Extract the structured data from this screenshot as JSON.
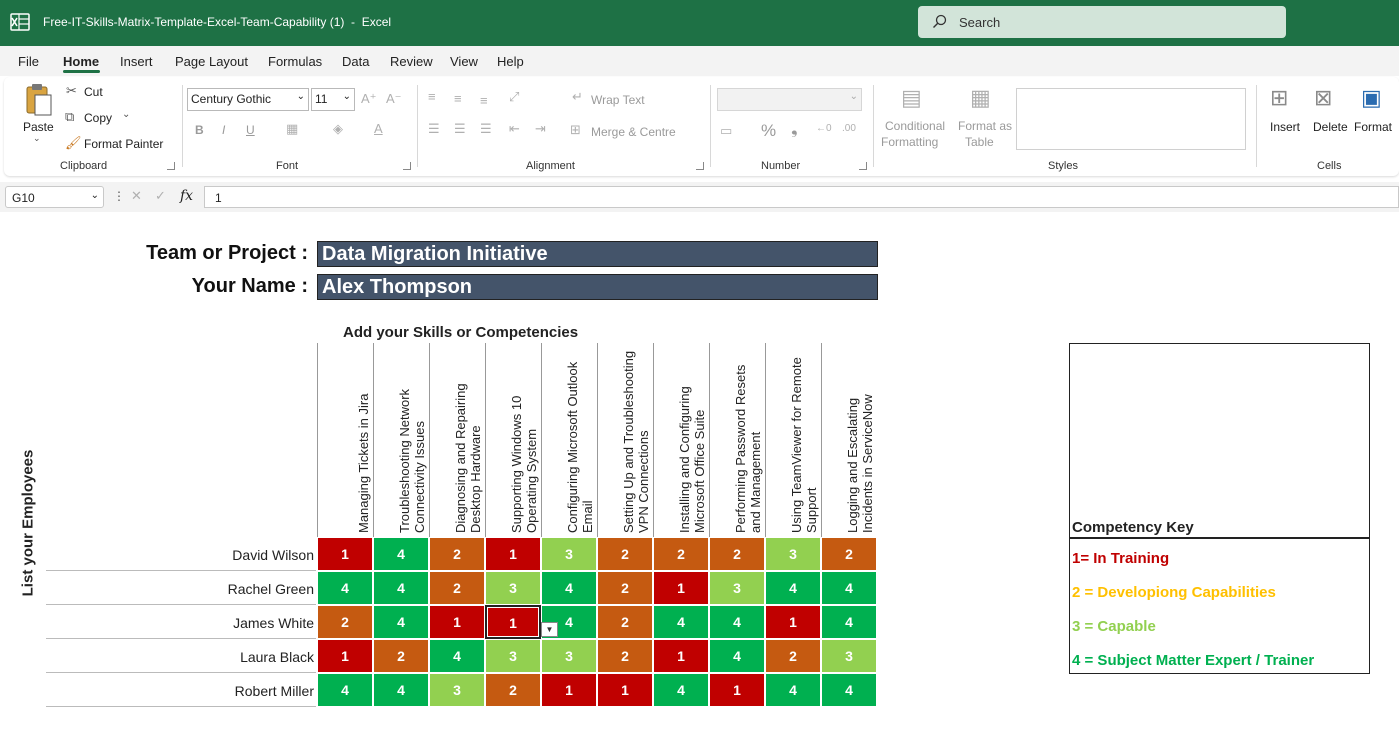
{
  "window": {
    "title": "Free-IT-Skills-Matrix-Template-Excel-Team-Capability (1)  -  Excel",
    "search_placeholder": "Search"
  },
  "menu": [
    "File",
    "Home",
    "Insert",
    "Page Layout",
    "Formulas",
    "Data",
    "Review",
    "View",
    "Help"
  ],
  "ribbon": {
    "clipboard": {
      "paste": "Paste",
      "cut": "Cut",
      "copy": "Copy",
      "format_painter": "Format Painter",
      "group": "Clipboard"
    },
    "font": {
      "name": "Century Gothic",
      "size": "11",
      "group": "Font",
      "bold": "B",
      "italic": "I",
      "underline": "U"
    },
    "alignment": {
      "wrap": "Wrap Text",
      "merge": "Merge & Centre",
      "group": "Alignment"
    },
    "number": {
      "group": "Number",
      "percent": "%",
      "comma": "❟"
    },
    "styles": {
      "conditional": "Conditional",
      "formatting": "Formatting",
      "format_as": "Format as",
      "table": "Table",
      "group": "Styles"
    },
    "cells": {
      "insert": "Insert",
      "delete": "Delete",
      "format": "Format",
      "group": "Cells"
    }
  },
  "formula_bar": {
    "cell_ref": "G10",
    "value": "1",
    "fx": "fx"
  },
  "sheet": {
    "team_label": "Team or Project :",
    "team_value": "Data Migration Initiative",
    "name_label": "Your Name :",
    "name_value": "Alex Thompson",
    "skills_title": "Add your Skills or Competencies",
    "employees_title": "List your Employees",
    "skills": [
      "Managing Tickets in Jira",
      "Troubleshooting Network Connectivity Issues",
      "Diagnosing and Repairing Desktop Hardware",
      "Supporting Windows 10 Operating System",
      "Configuring Microsoft Outlook Email",
      "Setting Up and Troubleshooting VPN Connections",
      "Installing and Configuring Microsoft Office Suite",
      "Performing Password Resets and Management",
      "Using TeamViewer for Remote Support",
      "Logging and Escalating Incidents in ServiceNow"
    ],
    "employees": [
      {
        "name": "David Wilson",
        "scores": [
          1,
          4,
          2,
          1,
          3,
          2,
          2,
          2,
          3,
          2
        ]
      },
      {
        "name": "Rachel Green",
        "scores": [
          4,
          4,
          2,
          3,
          4,
          2,
          1,
          3,
          4,
          4
        ]
      },
      {
        "name": "James White",
        "scores": [
          2,
          4,
          1,
          1,
          4,
          2,
          4,
          4,
          1,
          4
        ]
      },
      {
        "name": "Laura Black",
        "scores": [
          1,
          2,
          4,
          3,
          3,
          2,
          1,
          4,
          2,
          3
        ]
      },
      {
        "name": "Robert Miller",
        "scores": [
          4,
          4,
          3,
          2,
          1,
          1,
          4,
          1,
          4,
          4
        ]
      }
    ],
    "key": {
      "title": "Competency Key",
      "items": [
        {
          "text": "1= In Training",
          "color": "#c00000"
        },
        {
          "text": "2 = Developiong Capabilities",
          "color": "#ffc000"
        },
        {
          "text": "3 = Capable",
          "color": "#92d050"
        },
        {
          "text": "4 = Subject Matter Expert / Trainer",
          "color": "#00b050"
        }
      ]
    }
  },
  "colors": {
    "excel_green": "#1e7145",
    "score_1": "#c00000",
    "score_2": "#c55a11",
    "score_3": "#92d050",
    "score_4": "#00b050",
    "field_bg": "#44546a"
  },
  "icons": [
    "excel-logo-icon",
    "search-icon",
    "paste-icon",
    "scissors-icon",
    "copy-icon",
    "format-painter-icon",
    "chevron-down-icon",
    "dropdown-arrow-icon"
  ]
}
